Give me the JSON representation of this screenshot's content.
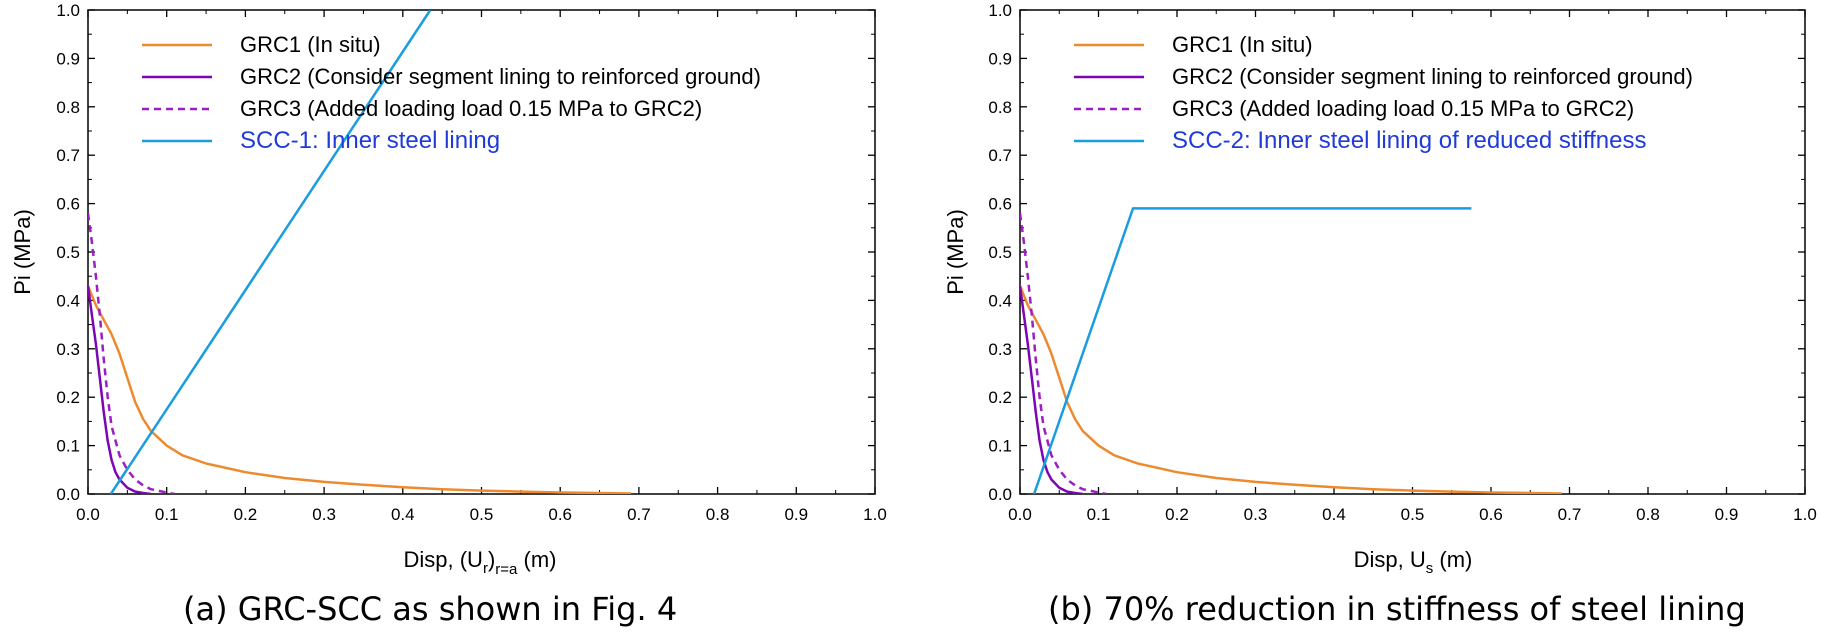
{
  "colors": {
    "grc1": "#ee8a2e",
    "grc2": "#7d06b3",
    "grc3": "#9c1fc4",
    "scc": "#1a9ce0",
    "scc_legend_text": "#1f3bd8"
  },
  "chart_data": [
    {
      "type": "line",
      "xlabel_main": "Disp, (U",
      "xlabel_sub": "r",
      "xlabel_sub2": "r=a",
      "xlabel_tail": " (m)",
      "ylabel": "Pi (MPa)",
      "xlim": [
        0,
        1.0
      ],
      "ylim": [
        0,
        1.0
      ],
      "xticks": [
        "0.0",
        "0.1",
        "0.2",
        "0.3",
        "0.4",
        "0.5",
        "0.6",
        "0.7",
        "0.8",
        "0.9",
        "1.0"
      ],
      "yticks": [
        "0.0",
        "0.1",
        "0.2",
        "0.3",
        "0.4",
        "0.5",
        "0.6",
        "0.7",
        "0.8",
        "0.9",
        "1.0"
      ],
      "legend_position": "top-left",
      "caption": "(a) GRC-SCC as shown in Fig. 4",
      "series": [
        {
          "name": "GRC1 (In situ)",
          "key": "grc1",
          "style": "solid",
          "x": [
            0.0,
            0.005,
            0.01,
            0.02,
            0.03,
            0.04,
            0.05,
            0.06,
            0.07,
            0.08,
            0.1,
            0.12,
            0.15,
            0.2,
            0.25,
            0.3,
            0.35,
            0.4,
            0.45,
            0.5,
            0.55,
            0.6,
            0.65,
            0.69
          ],
          "y": [
            0.43,
            0.41,
            0.39,
            0.36,
            0.33,
            0.29,
            0.24,
            0.19,
            0.155,
            0.13,
            0.1,
            0.08,
            0.063,
            0.045,
            0.033,
            0.025,
            0.019,
            0.014,
            0.01,
            0.007,
            0.005,
            0.003,
            0.002,
            0.001
          ]
        },
        {
          "name": "GRC2 (Consider segment lining to reinforced ground)",
          "key": "grc2",
          "style": "solid",
          "x": [
            0.0,
            0.005,
            0.01,
            0.015,
            0.02,
            0.025,
            0.03,
            0.035,
            0.04,
            0.05,
            0.06,
            0.07,
            0.08
          ],
          "y": [
            0.43,
            0.37,
            0.31,
            0.24,
            0.17,
            0.11,
            0.07,
            0.045,
            0.03,
            0.013,
            0.005,
            0.002,
            0.0
          ]
        },
        {
          "name": "GRC3 (Added loading load 0.15 MPa to GRC2)",
          "key": "grc3",
          "style": "dashed",
          "x": [
            0.0,
            0.005,
            0.01,
            0.015,
            0.02,
            0.025,
            0.03,
            0.04,
            0.05,
            0.06,
            0.07,
            0.08,
            0.1,
            0.11
          ],
          "y": [
            0.58,
            0.52,
            0.45,
            0.37,
            0.28,
            0.2,
            0.14,
            0.08,
            0.05,
            0.03,
            0.018,
            0.01,
            0.003,
            0.0
          ]
        },
        {
          "name": "SCC-1: Inner steel lining",
          "key": "scc",
          "style": "solid",
          "x": [
            0.029,
            0.435
          ],
          "y": [
            0.0,
            1.0
          ]
        }
      ]
    },
    {
      "type": "line",
      "xlabel_main": "Disp, U",
      "xlabel_sub": "s",
      "xlabel_sub2": "",
      "xlabel_tail": " (m)",
      "ylabel": "Pi (MPa)",
      "xlim": [
        0,
        1.0
      ],
      "ylim": [
        0,
        1.0
      ],
      "xticks": [
        "0.0",
        "0.1",
        "0.2",
        "0.3",
        "0.4",
        "0.5",
        "0.6",
        "0.7",
        "0.8",
        "0.9",
        "1.0"
      ],
      "yticks": [
        "0.0",
        "0.1",
        "0.2",
        "0.3",
        "0.4",
        "0.5",
        "0.6",
        "0.7",
        "0.8",
        "0.9",
        "1.0"
      ],
      "legend_position": "top-left",
      "caption": "(b) 70% reduction in stiffness of steel lining",
      "series": [
        {
          "name": "GRC1 (In situ)",
          "key": "grc1",
          "style": "solid",
          "x": [
            0.0,
            0.005,
            0.01,
            0.02,
            0.03,
            0.04,
            0.05,
            0.06,
            0.07,
            0.08,
            0.1,
            0.12,
            0.15,
            0.2,
            0.25,
            0.3,
            0.35,
            0.4,
            0.45,
            0.5,
            0.55,
            0.6,
            0.65,
            0.69
          ],
          "y": [
            0.43,
            0.41,
            0.39,
            0.36,
            0.33,
            0.29,
            0.24,
            0.19,
            0.155,
            0.13,
            0.1,
            0.08,
            0.063,
            0.045,
            0.033,
            0.025,
            0.019,
            0.014,
            0.01,
            0.007,
            0.005,
            0.003,
            0.002,
            0.001
          ]
        },
        {
          "name": "GRC2 (Consider segment lining to reinforced ground)",
          "key": "grc2",
          "style": "solid",
          "x": [
            0.0,
            0.005,
            0.01,
            0.015,
            0.02,
            0.025,
            0.03,
            0.035,
            0.04,
            0.05,
            0.06,
            0.07,
            0.08
          ],
          "y": [
            0.43,
            0.37,
            0.31,
            0.24,
            0.17,
            0.11,
            0.07,
            0.045,
            0.03,
            0.013,
            0.005,
            0.002,
            0.0
          ]
        },
        {
          "name": "GRC3 (Added loading load 0.15 MPa to GRC2)",
          "key": "grc3",
          "style": "dashed",
          "x": [
            0.0,
            0.005,
            0.01,
            0.015,
            0.02,
            0.025,
            0.03,
            0.04,
            0.05,
            0.06,
            0.07,
            0.08,
            0.1,
            0.11
          ],
          "y": [
            0.58,
            0.52,
            0.45,
            0.37,
            0.28,
            0.2,
            0.14,
            0.08,
            0.05,
            0.03,
            0.018,
            0.01,
            0.003,
            0.0
          ]
        },
        {
          "name": "SCC-2: Inner steel lining of reduced stiffness",
          "key": "scc",
          "style": "solid",
          "x": [
            0.018,
            0.144,
            0.575
          ],
          "y": [
            0.0,
            0.59,
            0.59
          ]
        }
      ]
    }
  ]
}
